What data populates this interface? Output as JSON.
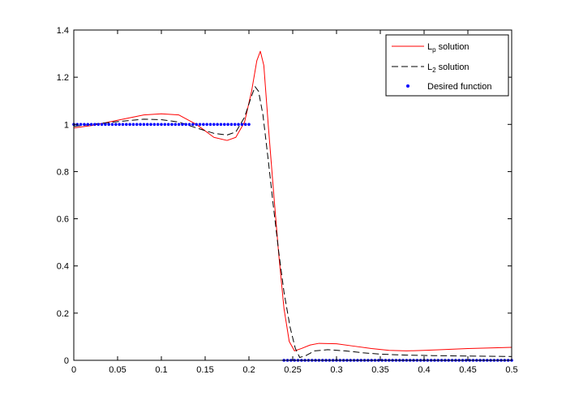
{
  "chart_data": {
    "type": "line",
    "title": "",
    "xlabel": "",
    "ylabel": "",
    "xlim": [
      0,
      0.5
    ],
    "ylim": [
      0,
      1.4
    ],
    "xticks": [
      0,
      0.05,
      0.1,
      0.15,
      0.2,
      0.25,
      0.3,
      0.35,
      0.4,
      0.45,
      0.5
    ],
    "xtick_labels": [
      "0",
      "0.05",
      "0.1",
      "0.15",
      "0.2",
      "0.25",
      "0.3",
      "0.35",
      "0.4",
      "0.45",
      "0.5"
    ],
    "yticks": [
      0,
      0.2,
      0.4,
      0.6,
      0.8,
      1,
      1.2,
      1.4
    ],
    "ytick_labels": [
      "0",
      "0.2",
      "0.4",
      "0.6",
      "0.8",
      "1",
      "1.2",
      "1.4"
    ],
    "grid": false,
    "legend_position": "top-right",
    "series": [
      {
        "name": "Lp solution",
        "name_main": "L",
        "name_sub": "p",
        "name_rest": " solution",
        "color": "#ff0000",
        "style": "solid",
        "points": [
          [
            0,
            0.985
          ],
          [
            0.02,
            0.995
          ],
          [
            0.04,
            1.01
          ],
          [
            0.06,
            1.025
          ],
          [
            0.08,
            1.04
          ],
          [
            0.1,
            1.045
          ],
          [
            0.12,
            1.04
          ],
          [
            0.14,
            1.0
          ],
          [
            0.16,
            0.945
          ],
          [
            0.175,
            0.932
          ],
          [
            0.185,
            0.945
          ],
          [
            0.195,
            1.01
          ],
          [
            0.203,
            1.14
          ],
          [
            0.209,
            1.27
          ],
          [
            0.213,
            1.31
          ],
          [
            0.217,
            1.25
          ],
          [
            0.222,
            1.0
          ],
          [
            0.228,
            0.72
          ],
          [
            0.234,
            0.45
          ],
          [
            0.24,
            0.22
          ],
          [
            0.246,
            0.08
          ],
          [
            0.252,
            0.04
          ],
          [
            0.26,
            0.05
          ],
          [
            0.27,
            0.065
          ],
          [
            0.28,
            0.072
          ],
          [
            0.3,
            0.07
          ],
          [
            0.32,
            0.06
          ],
          [
            0.34,
            0.05
          ],
          [
            0.36,
            0.042
          ],
          [
            0.38,
            0.04
          ],
          [
            0.4,
            0.042
          ],
          [
            0.42,
            0.045
          ],
          [
            0.45,
            0.05
          ],
          [
            0.48,
            0.053
          ],
          [
            0.5,
            0.055
          ]
        ]
      },
      {
        "name": "L2 solution",
        "name_main": "L",
        "name_sub": "2",
        "name_rest": " solution",
        "color": "#000000",
        "style": "dashed",
        "points": [
          [
            0,
            0.992
          ],
          [
            0.02,
            1.0
          ],
          [
            0.04,
            1.008
          ],
          [
            0.06,
            1.015
          ],
          [
            0.08,
            1.022
          ],
          [
            0.1,
            1.02
          ],
          [
            0.12,
            1.01
          ],
          [
            0.14,
            0.985
          ],
          [
            0.16,
            0.962
          ],
          [
            0.175,
            0.955
          ],
          [
            0.185,
            0.968
          ],
          [
            0.195,
            1.03
          ],
          [
            0.202,
            1.11
          ],
          [
            0.207,
            1.16
          ],
          [
            0.211,
            1.14
          ],
          [
            0.216,
            1.04
          ],
          [
            0.222,
            0.85
          ],
          [
            0.228,
            0.65
          ],
          [
            0.234,
            0.46
          ],
          [
            0.24,
            0.29
          ],
          [
            0.247,
            0.14
          ],
          [
            0.253,
            0.05
          ],
          [
            0.258,
            0.012
          ],
          [
            0.265,
            0.02
          ],
          [
            0.275,
            0.04
          ],
          [
            0.29,
            0.045
          ],
          [
            0.31,
            0.04
          ],
          [
            0.33,
            0.032
          ],
          [
            0.35,
            0.026
          ],
          [
            0.38,
            0.022
          ],
          [
            0.41,
            0.02
          ],
          [
            0.45,
            0.018
          ],
          [
            0.5,
            0.016
          ]
        ]
      },
      {
        "name": "Desired function",
        "color": "#0000ff",
        "style": "markers",
        "segments": [
          {
            "x_start": 0,
            "x_end": 0.2,
            "y": 1
          },
          {
            "x_start": 0.24,
            "x_end": 0.5,
            "y": 0
          }
        ],
        "step": 0.004
      }
    ]
  }
}
